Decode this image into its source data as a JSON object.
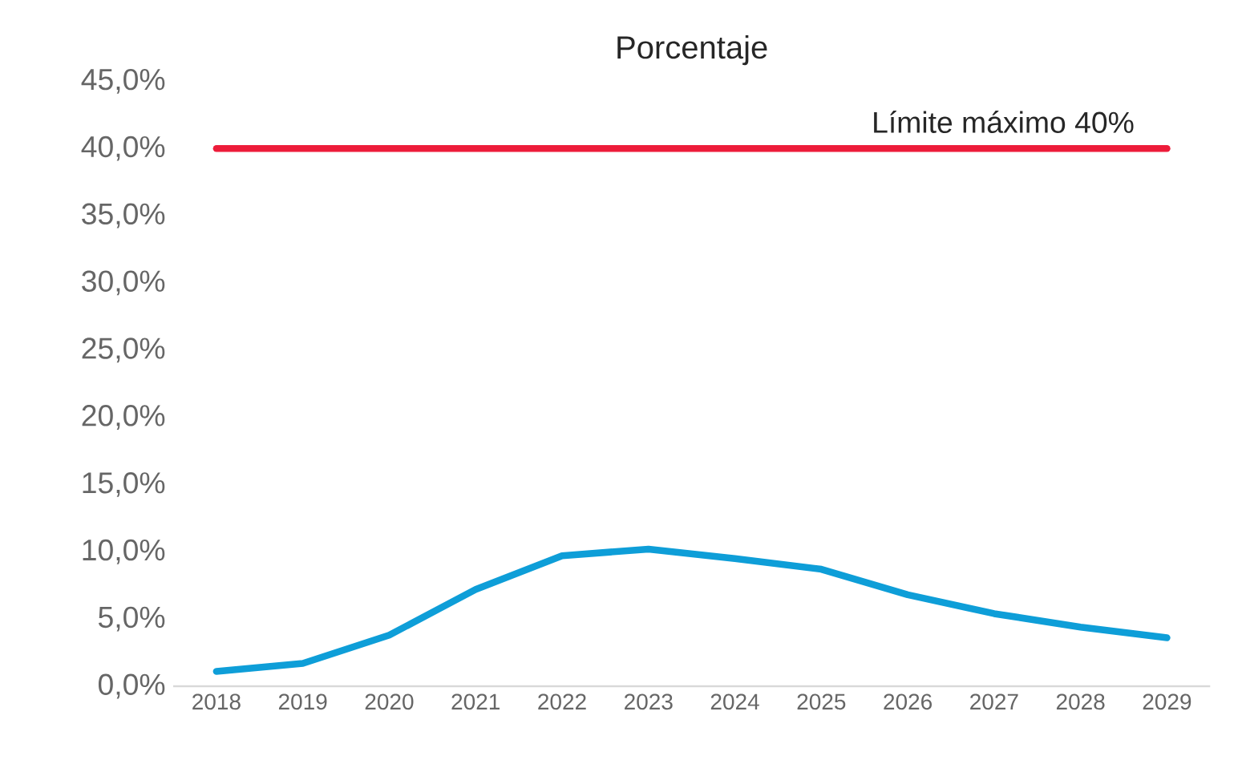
{
  "chart_data": {
    "type": "line",
    "title": "Porcentaje",
    "categories": [
      "2018",
      "2019",
      "2020",
      "2021",
      "2022",
      "2023",
      "2024",
      "2025",
      "2026",
      "2027",
      "2028",
      "2029"
    ],
    "series": [
      {
        "name": "Límite máximo 40%",
        "color": "#ed1c3a",
        "values": [
          40,
          40,
          40,
          40,
          40,
          40,
          40,
          40,
          40,
          40,
          40,
          40
        ]
      },
      {
        "color": "#0e9ed8",
        "values": [
          1.1,
          1.7,
          3.8,
          7.2,
          9.7,
          10.2,
          9.5,
          8.7,
          6.8,
          5.4,
          4.4,
          3.6
        ]
      }
    ],
    "ylim": [
      0,
      45
    ],
    "yticks": [
      {
        "value": 0,
        "label": "0,0%"
      },
      {
        "value": 5,
        "label": "5,0%"
      },
      {
        "value": 10,
        "label": "10,0%"
      },
      {
        "value": 15,
        "label": "15,0%"
      },
      {
        "value": 20,
        "label": "20,0%"
      },
      {
        "value": 25,
        "label": "25,0%"
      },
      {
        "value": 30,
        "label": "30,0%"
      },
      {
        "value": 35,
        "label": "35,0%"
      },
      {
        "value": 40,
        "label": "40,0%"
      },
      {
        "value": 45,
        "label": "45,0%"
      }
    ],
    "grid": false,
    "legend": false,
    "marker": "none",
    "line_style": "solid"
  }
}
